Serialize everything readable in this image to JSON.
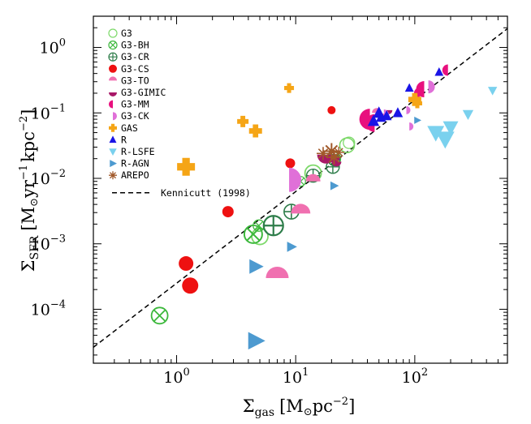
{
  "chart_data": {
    "type": "scatter",
    "x_scale": "log",
    "y_scale": "log",
    "xlim": [
      0.2,
      600
    ],
    "ylim": [
      1.5e-05,
      3
    ],
    "x_ticks": [
      {
        "value": 1,
        "base": "10",
        "exp": "0"
      },
      {
        "value": 10,
        "base": "10",
        "exp": "1"
      },
      {
        "value": 100,
        "base": "10",
        "exp": "2"
      }
    ],
    "y_ticks": [
      {
        "value": 0.0001,
        "base": "10",
        "exp": "−4"
      },
      {
        "value": 0.001,
        "base": "10",
        "exp": "−3"
      },
      {
        "value": 0.01,
        "base": "10",
        "exp": "−2"
      },
      {
        "value": 0.1,
        "base": "10",
        "exp": "−1"
      },
      {
        "value": 1,
        "base": "10",
        "exp": "0"
      }
    ],
    "xlabel": {
      "sym": "Σ",
      "sub": "gas",
      "bracket_open": "[M",
      "sun": "⊙",
      "unit": "pc",
      "exp": "−2",
      "bracket_close": "]"
    },
    "ylabel": {
      "sym": "Σ",
      "sub": "SFR",
      "bracket_open": "[M",
      "sun": "⊙",
      "unit1": "yr",
      "exp1": "−1",
      "unit2": "kpc",
      "exp2": "−2",
      "bracket_close": "]"
    },
    "kennicutt": {
      "label": "Kennicutt (1998)",
      "slope": 1.4,
      "coef": 0.00025
    },
    "series": [
      {
        "name": "G3",
        "marker": "open-circle",
        "color": "#7dd96a",
        "points": [
          [
            5,
            0.0013,
            10
          ],
          [
            14,
            0.012,
            10
          ],
          [
            27,
            0.032,
            9
          ],
          [
            28,
            0.035,
            7
          ]
        ]
      },
      {
        "name": "G3-BH",
        "marker": "circle-x",
        "color": "#3cb83c",
        "points": [
          [
            0.72,
            8e-05,
            10
          ],
          [
            4.4,
            0.0014,
            11
          ],
          [
            4.9,
            0.0019,
            7
          ],
          [
            11,
            0.009,
            6
          ],
          [
            21,
            0.02,
            8
          ]
        ]
      },
      {
        "name": "G3-CR",
        "marker": "circle-plus",
        "color": "#2e7d4a",
        "points": [
          [
            6.5,
            0.0019,
            12
          ],
          [
            9.2,
            0.0031,
            9
          ],
          [
            14,
            0.011,
            8
          ],
          [
            20.5,
            0.015,
            8
          ],
          [
            21,
            0.019,
            7
          ]
        ]
      },
      {
        "name": "G3-CS",
        "marker": "filled-circle",
        "color": "#ee1111",
        "points": [
          [
            1.2,
            0.0005,
            9
          ],
          [
            1.3,
            0.00023,
            10
          ],
          [
            2.7,
            0.0031,
            7
          ],
          [
            9,
            0.017,
            6
          ],
          [
            20,
            0.11,
            5
          ]
        ]
      },
      {
        "name": "G3-TO",
        "marker": "half-circle-top",
        "color": "#f070b0",
        "points": [
          [
            7,
            0.0003,
            14
          ],
          [
            11,
            0.0029,
            12
          ],
          [
            14,
            0.009,
            9
          ],
          [
            48,
            0.1,
            6
          ],
          [
            54,
            0.085,
            5
          ]
        ]
      },
      {
        "name": "G3-GIMIC",
        "marker": "half-circle-bottom",
        "color": "#a81868",
        "points": [
          [
            18,
            0.023,
            11
          ],
          [
            21,
            0.021,
            7
          ],
          [
            22,
            0.018,
            6
          ],
          [
            60,
            0.11,
            5
          ]
        ]
      },
      {
        "name": "G3-MM",
        "marker": "half-circle-left",
        "color": "#e8107e",
        "points": [
          [
            42,
            0.08,
            13
          ],
          [
            46,
            0.07,
            11
          ],
          [
            110,
            0.2,
            7
          ],
          [
            120,
            0.23,
            10
          ],
          [
            190,
            0.45,
            7
          ]
        ]
      },
      {
        "name": "G3-CK",
        "marker": "half-circle-right",
        "color": "#e070d8",
        "points": [
          [
            8.8,
            0.0095,
            15
          ],
          [
            55,
            0.095,
            6
          ],
          [
            85,
            0.11,
            5
          ],
          [
            90,
            0.062,
            5
          ],
          [
            130,
            0.25,
            8
          ]
        ]
      },
      {
        "name": "GAS",
        "marker": "plus",
        "color": "#f5a516",
        "points": [
          [
            1.2,
            0.015,
            11
          ],
          [
            3.6,
            0.074,
            7
          ],
          [
            4.6,
            0.053,
            8
          ],
          [
            8.8,
            0.24,
            6
          ],
          [
            100,
            0.16,
            8
          ],
          [
            105,
            0.14,
            6
          ]
        ]
      },
      {
        "name": "R",
        "marker": "triangle-up",
        "color": "#1a14e6",
        "points": [
          [
            45,
            0.075,
            8
          ],
          [
            50,
            0.1,
            8
          ],
          [
            52,
            0.085,
            7
          ],
          [
            58,
            0.09,
            7
          ],
          [
            72,
            0.1,
            7
          ],
          [
            90,
            0.24,
            6
          ],
          [
            160,
            0.42,
            6
          ]
        ]
      },
      {
        "name": "R-LSFE",
        "marker": "triangle-down",
        "color": "#7ad1ee",
        "points": [
          [
            150,
            0.05,
            11
          ],
          [
            180,
            0.04,
            12
          ],
          [
            200,
            0.06,
            10
          ],
          [
            280,
            0.095,
            7
          ],
          [
            450,
            0.22,
            6
          ]
        ]
      },
      {
        "name": "R-AGN",
        "marker": "triangle-right",
        "color": "#4d9ad0",
        "points": [
          [
            4.6,
            3.3e-05,
            12
          ],
          [
            4.6,
            0.00045,
            10
          ],
          [
            9.2,
            0.0009,
            7
          ],
          [
            21,
            0.0077,
            6
          ],
          [
            105,
            0.077,
            5
          ]
        ]
      },
      {
        "name": "AREPO",
        "marker": "asterisk",
        "color": "#a1592a",
        "points": [
          [
            17,
            0.024,
            8
          ],
          [
            20,
            0.026,
            10
          ],
          [
            21,
            0.021,
            9
          ],
          [
            23,
            0.025,
            7
          ]
        ]
      }
    ]
  }
}
